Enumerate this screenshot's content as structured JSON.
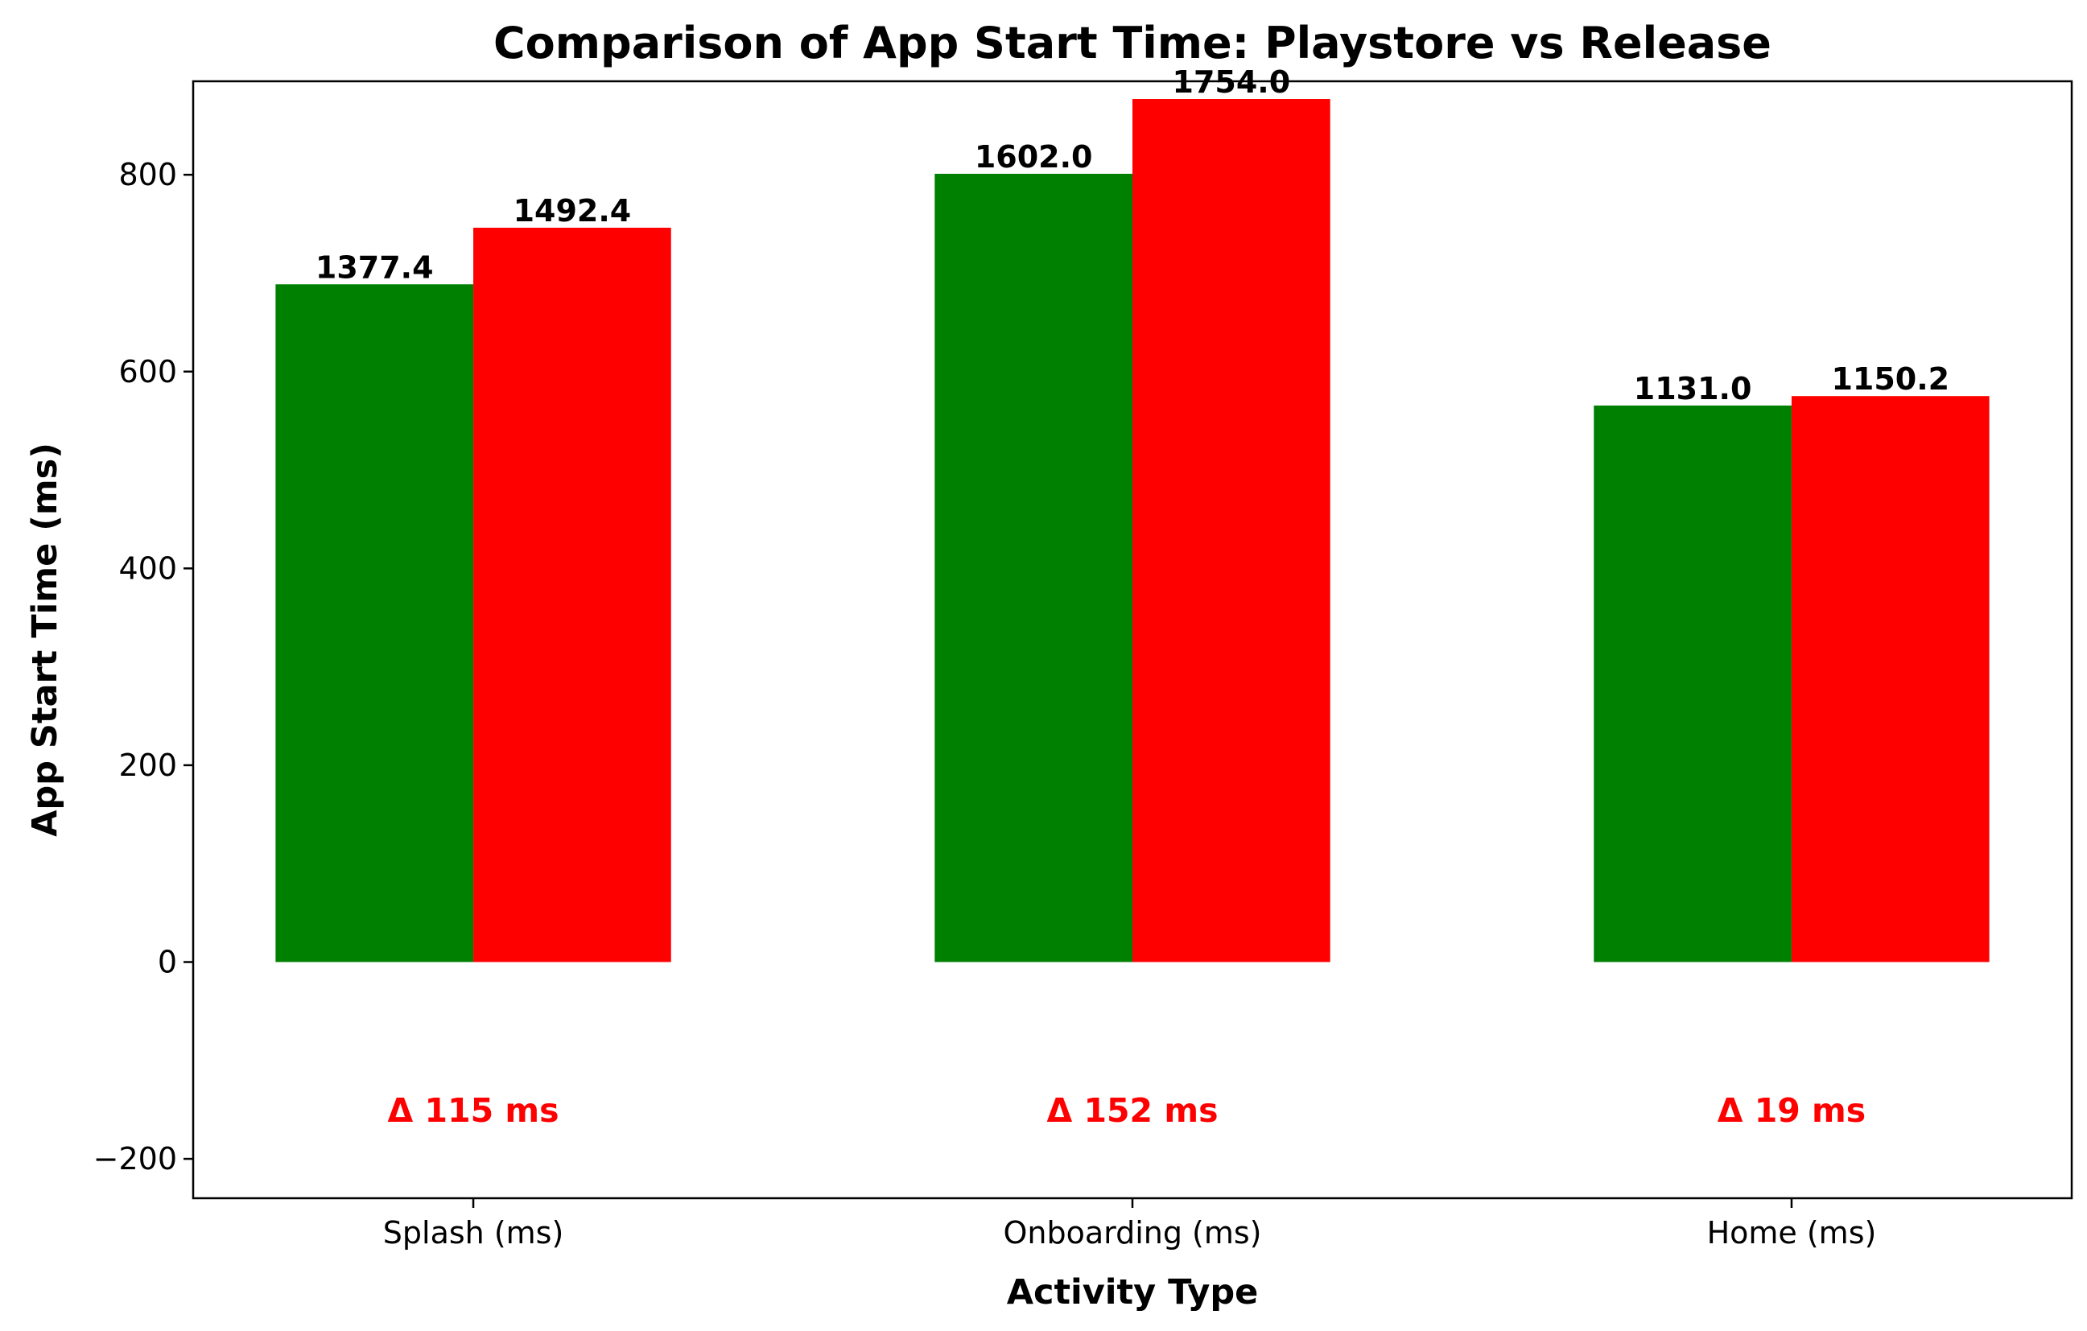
{
  "chart_data": {
    "type": "bar",
    "title": "Comparison of App Start Time: Playstore vs Release",
    "xlabel": "Activity Type",
    "ylabel": "App Start Time (ms)",
    "ylim": [
      -240,
      895
    ],
    "yticks": [
      -200,
      0,
      200,
      400,
      600,
      800
    ],
    "ytick_labels": [
      "−200",
      "0",
      "200",
      "400",
      "600",
      "800"
    ],
    "grid": false,
    "categories": [
      "Splash (ms)",
      "Onboarding (ms)",
      "Home (ms)"
    ],
    "series": [
      {
        "color": "#008000",
        "values": [
          688.7,
          801.0,
          565.5
        ],
        "labels": [
          "1377.4",
          "1602.0",
          "1131.0"
        ]
      },
      {
        "color": "#ff0000",
        "values": [
          746.2,
          877.0,
          575.1
        ],
        "labels": [
          "1492.4",
          "1754.0",
          "1150.2"
        ]
      }
    ],
    "annotations": [
      {
        "text": "Δ 115 ms",
        "y": -150,
        "color": "#ff0000"
      },
      {
        "text": "Δ 152 ms",
        "y": -150,
        "color": "#ff0000"
      },
      {
        "text": "Δ 19 ms",
        "y": -150,
        "color": "#ff0000"
      }
    ]
  }
}
